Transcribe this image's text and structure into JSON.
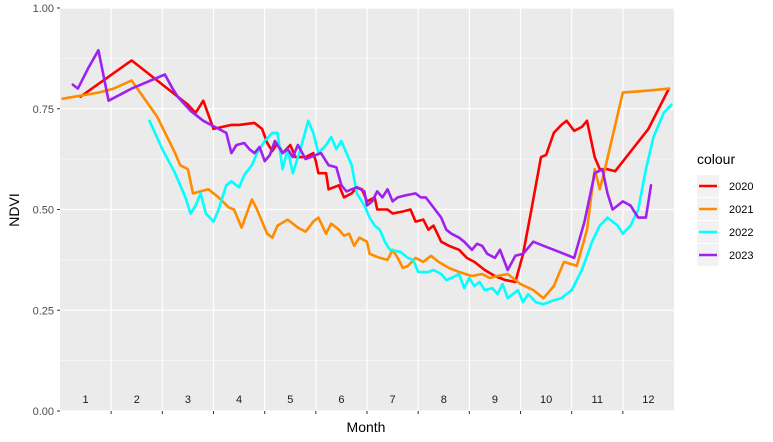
{
  "chart_data": {
    "type": "line",
    "title": "",
    "xlabel": "Month",
    "ylabel": "NDVI",
    "xlim": [
      0.5,
      12.5
    ],
    "ylim": [
      0,
      1
    ],
    "x_ticks": [
      1,
      2,
      3,
      4,
      5,
      6,
      7,
      8,
      9,
      10,
      11,
      12
    ],
    "x_tick_labels": [
      "1",
      "2",
      "3",
      "4",
      "5",
      "6",
      "7",
      "8",
      "9",
      "10",
      "11",
      "12"
    ],
    "y_ticks": [
      0,
      0.25,
      0.5,
      0.75,
      1
    ],
    "y_tick_labels": [
      "0.00",
      "0.25",
      "0.50",
      "0.75",
      "1.00"
    ],
    "grid": true,
    "legend": {
      "title": "colour",
      "position": "right"
    },
    "series": [
      {
        "name": "2020",
        "color": "#ff0000",
        "points": [
          [
            0.9,
            0.78
          ],
          [
            1.9,
            0.87
          ],
          [
            2.3,
            0.83
          ],
          [
            2.7,
            0.79
          ],
          [
            3.0,
            0.76
          ],
          [
            3.15,
            0.74
          ],
          [
            3.3,
            0.77
          ],
          [
            3.5,
            0.7
          ],
          [
            3.85,
            0.71
          ],
          [
            4.0,
            0.71
          ],
          [
            4.3,
            0.715
          ],
          [
            4.45,
            0.7
          ],
          [
            4.55,
            0.665
          ],
          [
            4.65,
            0.645
          ],
          [
            4.75,
            0.665
          ],
          [
            4.85,
            0.64
          ],
          [
            5.0,
            0.66
          ],
          [
            5.1,
            0.63
          ],
          [
            5.3,
            0.63
          ],
          [
            5.45,
            0.64
          ],
          [
            5.5,
            0.62
          ],
          [
            5.55,
            0.59
          ],
          [
            5.7,
            0.59
          ],
          [
            5.75,
            0.55
          ],
          [
            5.95,
            0.56
          ],
          [
            6.05,
            0.53
          ],
          [
            6.2,
            0.54
          ],
          [
            6.3,
            0.555
          ],
          [
            6.4,
            0.55
          ],
          [
            6.5,
            0.52
          ],
          [
            6.65,
            0.53
          ],
          [
            6.7,
            0.5
          ],
          [
            6.9,
            0.5
          ],
          [
            7.0,
            0.49
          ],
          [
            7.2,
            0.495
          ],
          [
            7.35,
            0.5
          ],
          [
            7.45,
            0.47
          ],
          [
            7.6,
            0.475
          ],
          [
            7.7,
            0.45
          ],
          [
            7.8,
            0.46
          ],
          [
            7.95,
            0.42
          ],
          [
            8.1,
            0.41
          ],
          [
            8.3,
            0.4
          ],
          [
            8.45,
            0.38
          ],
          [
            8.6,
            0.37
          ],
          [
            8.8,
            0.35
          ],
          [
            9.0,
            0.335
          ],
          [
            9.2,
            0.325
          ],
          [
            9.4,
            0.32
          ],
          [
            9.55,
            0.39
          ],
          [
            9.7,
            0.49
          ],
          [
            9.9,
            0.63
          ],
          [
            10.0,
            0.635
          ],
          [
            10.15,
            0.69
          ],
          [
            10.3,
            0.71
          ],
          [
            10.4,
            0.72
          ],
          [
            10.55,
            0.695
          ],
          [
            10.7,
            0.705
          ],
          [
            10.8,
            0.72
          ],
          [
            10.95,
            0.63
          ],
          [
            11.05,
            0.6
          ],
          [
            11.2,
            0.6
          ],
          [
            11.35,
            0.595
          ],
          [
            12.0,
            0.7
          ],
          [
            12.4,
            0.8
          ]
        ]
      },
      {
        "name": "2021",
        "color": "#ff8c00",
        "points": [
          [
            0.55,
            0.775
          ],
          [
            1.25,
            0.79
          ],
          [
            1.55,
            0.8
          ],
          [
            1.9,
            0.82
          ],
          [
            2.4,
            0.73
          ],
          [
            2.75,
            0.64
          ],
          [
            2.85,
            0.61
          ],
          [
            3.0,
            0.6
          ],
          [
            3.1,
            0.54
          ],
          [
            3.4,
            0.55
          ],
          [
            3.6,
            0.53
          ],
          [
            3.8,
            0.505
          ],
          [
            3.9,
            0.5
          ],
          [
            4.05,
            0.455
          ],
          [
            4.25,
            0.525
          ],
          [
            4.35,
            0.5
          ],
          [
            4.55,
            0.44
          ],
          [
            4.65,
            0.43
          ],
          [
            4.75,
            0.46
          ],
          [
            4.95,
            0.475
          ],
          [
            5.15,
            0.455
          ],
          [
            5.3,
            0.445
          ],
          [
            5.45,
            0.47
          ],
          [
            5.55,
            0.48
          ],
          [
            5.7,
            0.44
          ],
          [
            5.8,
            0.465
          ],
          [
            5.95,
            0.45
          ],
          [
            6.05,
            0.435
          ],
          [
            6.15,
            0.44
          ],
          [
            6.25,
            0.41
          ],
          [
            6.35,
            0.43
          ],
          [
            6.5,
            0.42
          ],
          [
            6.55,
            0.39
          ],
          [
            6.75,
            0.38
          ],
          [
            6.9,
            0.375
          ],
          [
            7.0,
            0.4
          ],
          [
            7.1,
            0.38
          ],
          [
            7.2,
            0.355
          ],
          [
            7.3,
            0.36
          ],
          [
            7.45,
            0.38
          ],
          [
            7.6,
            0.37
          ],
          [
            7.75,
            0.385
          ],
          [
            7.9,
            0.37
          ],
          [
            8.1,
            0.355
          ],
          [
            8.3,
            0.345
          ],
          [
            8.55,
            0.335
          ],
          [
            8.75,
            0.34
          ],
          [
            8.9,
            0.33
          ],
          [
            9.05,
            0.335
          ],
          [
            9.25,
            0.34
          ],
          [
            9.5,
            0.315
          ],
          [
            9.75,
            0.3
          ],
          [
            9.95,
            0.28
          ],
          [
            10.15,
            0.31
          ],
          [
            10.35,
            0.37
          ],
          [
            10.6,
            0.36
          ],
          [
            10.8,
            0.45
          ],
          [
            10.95,
            0.6
          ],
          [
            11.05,
            0.55
          ],
          [
            11.15,
            0.6
          ],
          [
            11.5,
            0.79
          ],
          [
            12.0,
            0.795
          ],
          [
            12.4,
            0.8
          ]
        ]
      },
      {
        "name": "2022",
        "color": "#00ffff",
        "points": [
          [
            2.25,
            0.72
          ],
          [
            2.5,
            0.65
          ],
          [
            2.75,
            0.59
          ],
          [
            2.95,
            0.53
          ],
          [
            3.05,
            0.49
          ],
          [
            3.15,
            0.51
          ],
          [
            3.25,
            0.54
          ],
          [
            3.35,
            0.49
          ],
          [
            3.5,
            0.47
          ],
          [
            3.6,
            0.5
          ],
          [
            3.75,
            0.56
          ],
          [
            3.85,
            0.57
          ],
          [
            4.0,
            0.555
          ],
          [
            4.1,
            0.585
          ],
          [
            4.25,
            0.61
          ],
          [
            4.35,
            0.64
          ],
          [
            4.5,
            0.67
          ],
          [
            4.65,
            0.69
          ],
          [
            4.75,
            0.69
          ],
          [
            4.85,
            0.6
          ],
          [
            4.95,
            0.65
          ],
          [
            5.05,
            0.59
          ],
          [
            5.15,
            0.63
          ],
          [
            5.2,
            0.65
          ],
          [
            5.35,
            0.72
          ],
          [
            5.45,
            0.69
          ],
          [
            5.55,
            0.64
          ],
          [
            5.7,
            0.66
          ],
          [
            5.8,
            0.68
          ],
          [
            5.9,
            0.65
          ],
          [
            6.0,
            0.67
          ],
          [
            6.1,
            0.64
          ],
          [
            6.2,
            0.61
          ],
          [
            6.3,
            0.54
          ],
          [
            6.45,
            0.51
          ],
          [
            6.55,
            0.48
          ],
          [
            6.65,
            0.46
          ],
          [
            6.75,
            0.45
          ],
          [
            6.85,
            0.42
          ],
          [
            6.95,
            0.4
          ],
          [
            7.15,
            0.395
          ],
          [
            7.3,
            0.38
          ],
          [
            7.4,
            0.375
          ],
          [
            7.5,
            0.345
          ],
          [
            7.7,
            0.345
          ],
          [
            7.8,
            0.35
          ],
          [
            7.95,
            0.34
          ],
          [
            8.05,
            0.325
          ],
          [
            8.15,
            0.33
          ],
          [
            8.3,
            0.34
          ],
          [
            8.4,
            0.305
          ],
          [
            8.5,
            0.33
          ],
          [
            8.6,
            0.31
          ],
          [
            8.7,
            0.32
          ],
          [
            8.8,
            0.3
          ],
          [
            8.95,
            0.305
          ],
          [
            9.05,
            0.29
          ],
          [
            9.15,
            0.315
          ],
          [
            9.25,
            0.28
          ],
          [
            9.35,
            0.29
          ],
          [
            9.45,
            0.3
          ],
          [
            9.55,
            0.27
          ],
          [
            9.65,
            0.29
          ],
          [
            9.8,
            0.27
          ],
          [
            9.95,
            0.265
          ],
          [
            10.15,
            0.275
          ],
          [
            10.3,
            0.28
          ],
          [
            10.5,
            0.3
          ],
          [
            10.7,
            0.35
          ],
          [
            10.9,
            0.42
          ],
          [
            11.05,
            0.46
          ],
          [
            11.2,
            0.48
          ],
          [
            11.3,
            0.47
          ],
          [
            11.4,
            0.46
          ],
          [
            11.5,
            0.44
          ],
          [
            11.65,
            0.46
          ],
          [
            11.8,
            0.5
          ],
          [
            11.95,
            0.6
          ],
          [
            12.1,
            0.68
          ],
          [
            12.3,
            0.74
          ],
          [
            12.45,
            0.76
          ]
        ]
      },
      {
        "name": "2023",
        "color": "#a020f0",
        "points": [
          [
            0.75,
            0.81
          ],
          [
            0.85,
            0.8
          ],
          [
            1.05,
            0.85
          ],
          [
            1.25,
            0.895
          ],
          [
            1.45,
            0.77
          ],
          [
            1.9,
            0.8
          ],
          [
            2.55,
            0.835
          ],
          [
            2.7,
            0.8
          ],
          [
            2.8,
            0.78
          ],
          [
            3.05,
            0.745
          ],
          [
            3.3,
            0.72
          ],
          [
            3.6,
            0.7
          ],
          [
            3.75,
            0.69
          ],
          [
            3.85,
            0.64
          ],
          [
            3.95,
            0.66
          ],
          [
            4.1,
            0.665
          ],
          [
            4.2,
            0.65
          ],
          [
            4.3,
            0.64
          ],
          [
            4.4,
            0.655
          ],
          [
            4.5,
            0.62
          ],
          [
            4.6,
            0.635
          ],
          [
            4.7,
            0.67
          ],
          [
            4.85,
            0.64
          ],
          [
            4.95,
            0.65
          ],
          [
            5.05,
            0.63
          ],
          [
            5.15,
            0.66
          ],
          [
            5.3,
            0.625
          ],
          [
            5.4,
            0.63
          ],
          [
            5.5,
            0.635
          ],
          [
            5.6,
            0.64
          ],
          [
            5.75,
            0.61
          ],
          [
            5.9,
            0.605
          ],
          [
            6.0,
            0.56
          ],
          [
            6.1,
            0.545
          ],
          [
            6.2,
            0.55
          ],
          [
            6.3,
            0.555
          ],
          [
            6.45,
            0.545
          ],
          [
            6.5,
            0.51
          ],
          [
            6.6,
            0.52
          ],
          [
            6.7,
            0.545
          ],
          [
            6.8,
            0.53
          ],
          [
            6.9,
            0.55
          ],
          [
            7.0,
            0.52
          ],
          [
            7.1,
            0.53
          ],
          [
            7.25,
            0.535
          ],
          [
            7.45,
            0.54
          ],
          [
            7.55,
            0.53
          ],
          [
            7.65,
            0.53
          ],
          [
            7.8,
            0.505
          ],
          [
            7.95,
            0.48
          ],
          [
            8.05,
            0.45
          ],
          [
            8.15,
            0.44
          ],
          [
            8.3,
            0.43
          ],
          [
            8.4,
            0.42
          ],
          [
            8.55,
            0.4
          ],
          [
            8.65,
            0.415
          ],
          [
            8.75,
            0.41
          ],
          [
            8.85,
            0.39
          ],
          [
            9.0,
            0.38
          ],
          [
            9.1,
            0.4
          ],
          [
            9.25,
            0.35
          ],
          [
            9.4,
            0.385
          ],
          [
            9.55,
            0.39
          ],
          [
            9.75,
            0.42
          ],
          [
            9.95,
            0.41
          ],
          [
            10.15,
            0.4
          ],
          [
            10.35,
            0.39
          ],
          [
            10.55,
            0.38
          ],
          [
            10.75,
            0.47
          ],
          [
            10.95,
            0.59
          ],
          [
            11.1,
            0.6
          ],
          [
            11.2,
            0.54
          ],
          [
            11.3,
            0.5
          ],
          [
            11.4,
            0.51
          ],
          [
            11.5,
            0.52
          ],
          [
            11.65,
            0.51
          ],
          [
            11.8,
            0.48
          ],
          [
            11.95,
            0.48
          ],
          [
            12.05,
            0.56
          ]
        ]
      }
    ]
  }
}
